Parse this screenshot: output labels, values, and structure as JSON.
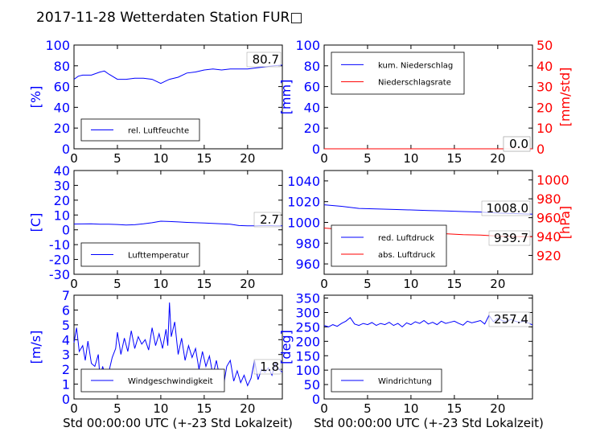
{
  "title": "2017-11-28 Wetterdaten Station FUR□",
  "xlabel": "Std 00:00:00 UTC (+-23 Std Lokalzeit)",
  "colors": {
    "primary": "#0000ff",
    "secondary": "#ff0000",
    "secondary_light": "#8080ff"
  },
  "chart_data": [
    {
      "type": "line",
      "ylabel": "[%]",
      "xlim": [
        0,
        24
      ],
      "ylim": [
        0,
        100
      ],
      "xticks": [
        0,
        5,
        10,
        15,
        20
      ],
      "yticks": [
        0,
        20,
        40,
        60,
        80,
        100
      ],
      "legend": "bottom-left",
      "latest_value": "80.7",
      "series": [
        {
          "name": "rel. Luftfeuchte",
          "color": "#0000ff",
          "x": [
            0,
            0.5,
            1,
            2,
            3,
            3.5,
            4,
            5,
            6,
            7,
            8,
            9,
            10,
            10.5,
            11,
            12,
            13,
            14,
            15,
            16,
            17,
            18,
            19,
            20,
            21,
            22,
            23,
            24
          ],
          "y": [
            67,
            70,
            71,
            71,
            74,
            75,
            72,
            67,
            67,
            68,
            68,
            67,
            63,
            65,
            67,
            69,
            73,
            74,
            76,
            77,
            76,
            77,
            77,
            77,
            78,
            79,
            80,
            80.7
          ]
        }
      ]
    },
    {
      "type": "line",
      "ylabel": "[mm]",
      "y2label": "[mm/std]",
      "xlim": [
        0,
        24
      ],
      "ylim": [
        0,
        100
      ],
      "y2lim": [
        0,
        50
      ],
      "xticks": [
        0,
        5,
        10,
        15,
        20
      ],
      "yticks": [
        0,
        20,
        40,
        60,
        80,
        100
      ],
      "y2ticks": [
        0,
        10,
        20,
        30,
        40,
        50
      ],
      "legend": "top-left",
      "latest_value": "0.0",
      "latest_value2": "0.0",
      "series": [
        {
          "name": "kum. Niederschlag",
          "color": "#0000ff",
          "axis": "left",
          "x": [
            0,
            24
          ],
          "y": [
            0,
            0
          ]
        },
        {
          "name": "Niederschlagsrate",
          "color": "#ff0000",
          "axis": "right",
          "x": [
            0,
            24
          ],
          "y": [
            0,
            0
          ]
        }
      ]
    },
    {
      "type": "line",
      "ylabel": "[C]",
      "xlim": [
        0,
        24
      ],
      "ylim": [
        -30,
        40
      ],
      "xticks": [
        0,
        5,
        10,
        15,
        20
      ],
      "yticks": [
        -30,
        -20,
        -10,
        0,
        10,
        20,
        30,
        40
      ],
      "legend": "bottom-left",
      "latest_value": "2.7",
      "series": [
        {
          "name": "Lufttemperatur",
          "color": "#0000ff",
          "x": [
            0,
            2,
            3,
            4,
            5,
            6,
            7,
            8,
            9,
            10,
            11,
            12,
            13,
            14,
            15,
            16,
            17,
            18,
            19,
            20,
            21,
            22,
            23,
            24
          ],
          "y": [
            3.9,
            4,
            3.8,
            3.8,
            3.6,
            3.2,
            3.4,
            4,
            4.8,
            5.8,
            5.6,
            5.3,
            5.0,
            4.8,
            4.6,
            4.3,
            4.0,
            3.8,
            2.9,
            2.7,
            2.7,
            3.0,
            2.8,
            2.7
          ]
        }
      ]
    },
    {
      "type": "line",
      "ylabel": "",
      "y2label": "[hPa]",
      "xlim": [
        0,
        24
      ],
      "ylim": [
        950,
        1050
      ],
      "y2lim": [
        900,
        1010
      ],
      "xticks": [
        0,
        5,
        10,
        15,
        20
      ],
      "yticks": [
        960,
        980,
        1000,
        1020,
        1040
      ],
      "y2ticks": [
        920,
        940,
        960,
        980,
        1000
      ],
      "legend": "bottom-left",
      "latest_value": "1008.0",
      "latest_value2": "939.7",
      "series": [
        {
          "name": "red. Luftdruck",
          "color": "#0000ff",
          "axis": "left",
          "x": [
            0,
            2,
            4,
            6,
            8,
            10,
            12,
            14,
            16,
            18,
            20,
            22,
            24
          ],
          "y": [
            1017,
            1015.5,
            1013.5,
            1013,
            1012.5,
            1012,
            1011.5,
            1011,
            1010.5,
            1010,
            1009,
            1008.5,
            1008
          ]
        },
        {
          "name": "abs. Luftdruck",
          "color": "#ff0000",
          "axis": "right",
          "x": [
            0,
            2,
            4,
            6,
            8,
            10,
            12,
            14,
            16,
            18,
            20,
            22,
            24
          ],
          "y": [
            949,
            947.5,
            946,
            945,
            944.5,
            944,
            943.5,
            943,
            942,
            941.5,
            940.5,
            940,
            939.7
          ]
        }
      ]
    },
    {
      "type": "line",
      "ylabel": "[m/s]",
      "xlim": [
        0,
        24
      ],
      "ylim": [
        0,
        7
      ],
      "xticks": [
        0,
        5,
        10,
        15,
        20
      ],
      "yticks": [
        0,
        1,
        2,
        3,
        4,
        5,
        6,
        7
      ],
      "legend": "bottom-left",
      "latest_value": "1.8",
      "series": [
        {
          "name": "Windgeschwindigkeit",
          "color": "#0000ff",
          "x": [
            0,
            0.3,
            0.6,
            1,
            1.3,
            1.6,
            2,
            2.4,
            2.8,
            3,
            3.3,
            3.6,
            4,
            4.4,
            4.8,
            5,
            5.4,
            5.8,
            6.2,
            6.6,
            7,
            7.4,
            7.8,
            8.2,
            8.6,
            9,
            9.4,
            9.8,
            10.2,
            10.6,
            10.8,
            11,
            11.2,
            11.6,
            12,
            12.4,
            12.8,
            13.2,
            13.6,
            14,
            14.4,
            14.8,
            15.2,
            15.6,
            16,
            16.4,
            16.8,
            17.2,
            17.6,
            18,
            18.4,
            18.8,
            19.2,
            19.6,
            20,
            20.4,
            20.8,
            21.2,
            21.6,
            22,
            22.4,
            22.8,
            23.2,
            23.6,
            24
          ],
          "y": [
            3.8,
            4.8,
            3.2,
            3.6,
            2.6,
            3.9,
            2.4,
            2.2,
            3.0,
            1.3,
            2.2,
            1.6,
            1.8,
            2.8,
            3.4,
            4.5,
            3.0,
            4.1,
            3.2,
            4.6,
            3.4,
            4.2,
            3.7,
            4.0,
            3.3,
            4.8,
            3.6,
            4.4,
            3.4,
            4.7,
            3.6,
            6.5,
            4.2,
            5.2,
            3.0,
            4.1,
            2.6,
            3.6,
            2.8,
            3.4,
            2.0,
            3.2,
            2.2,
            2.9,
            1.6,
            2.6,
            1.4,
            0.8,
            2.2,
            2.6,
            1.2,
            1.9,
            1.1,
            1.6,
            0.9,
            1.4,
            2.6,
            1.3,
            2.0,
            1.8,
            2.1,
            1.6,
            2.4,
            2.0,
            1.8
          ]
        }
      ]
    },
    {
      "type": "line",
      "ylabel": "[deg]",
      "xlim": [
        0,
        24
      ],
      "ylim": [
        0,
        360
      ],
      "xticks": [
        0,
        5,
        10,
        15,
        20
      ],
      "yticks": [
        0,
        50,
        100,
        150,
        200,
        250,
        300,
        350
      ],
      "legend": "bottom-left",
      "latest_value": "257.4",
      "series": [
        {
          "name": "Windrichtung",
          "color": "#0000ff",
          "x": [
            0,
            0.5,
            1,
            1.5,
            2,
            2.5,
            3,
            3.5,
            4,
            4.5,
            5,
            5.5,
            6,
            6.5,
            7,
            7.5,
            8,
            8.5,
            9,
            9.5,
            10,
            10.5,
            11,
            11.5,
            12,
            12.5,
            13,
            13.5,
            14,
            14.5,
            15,
            15.5,
            16,
            16.5,
            17,
            17.5,
            18,
            18.5,
            19,
            19.5,
            20,
            20.5,
            21,
            21.5,
            22,
            22.5,
            23,
            23.5,
            24
          ],
          "y": [
            255,
            250,
            258,
            252,
            262,
            270,
            282,
            260,
            255,
            262,
            258,
            265,
            255,
            262,
            258,
            266,
            255,
            262,
            250,
            264,
            258,
            268,
            262,
            272,
            260,
            266,
            258,
            270,
            262,
            266,
            270,
            262,
            256,
            270,
            264,
            268,
            272,
            260,
            290,
            268,
            280,
            272,
            268,
            276,
            270,
            266,
            270,
            264,
            257
          ]
        }
      ]
    }
  ]
}
